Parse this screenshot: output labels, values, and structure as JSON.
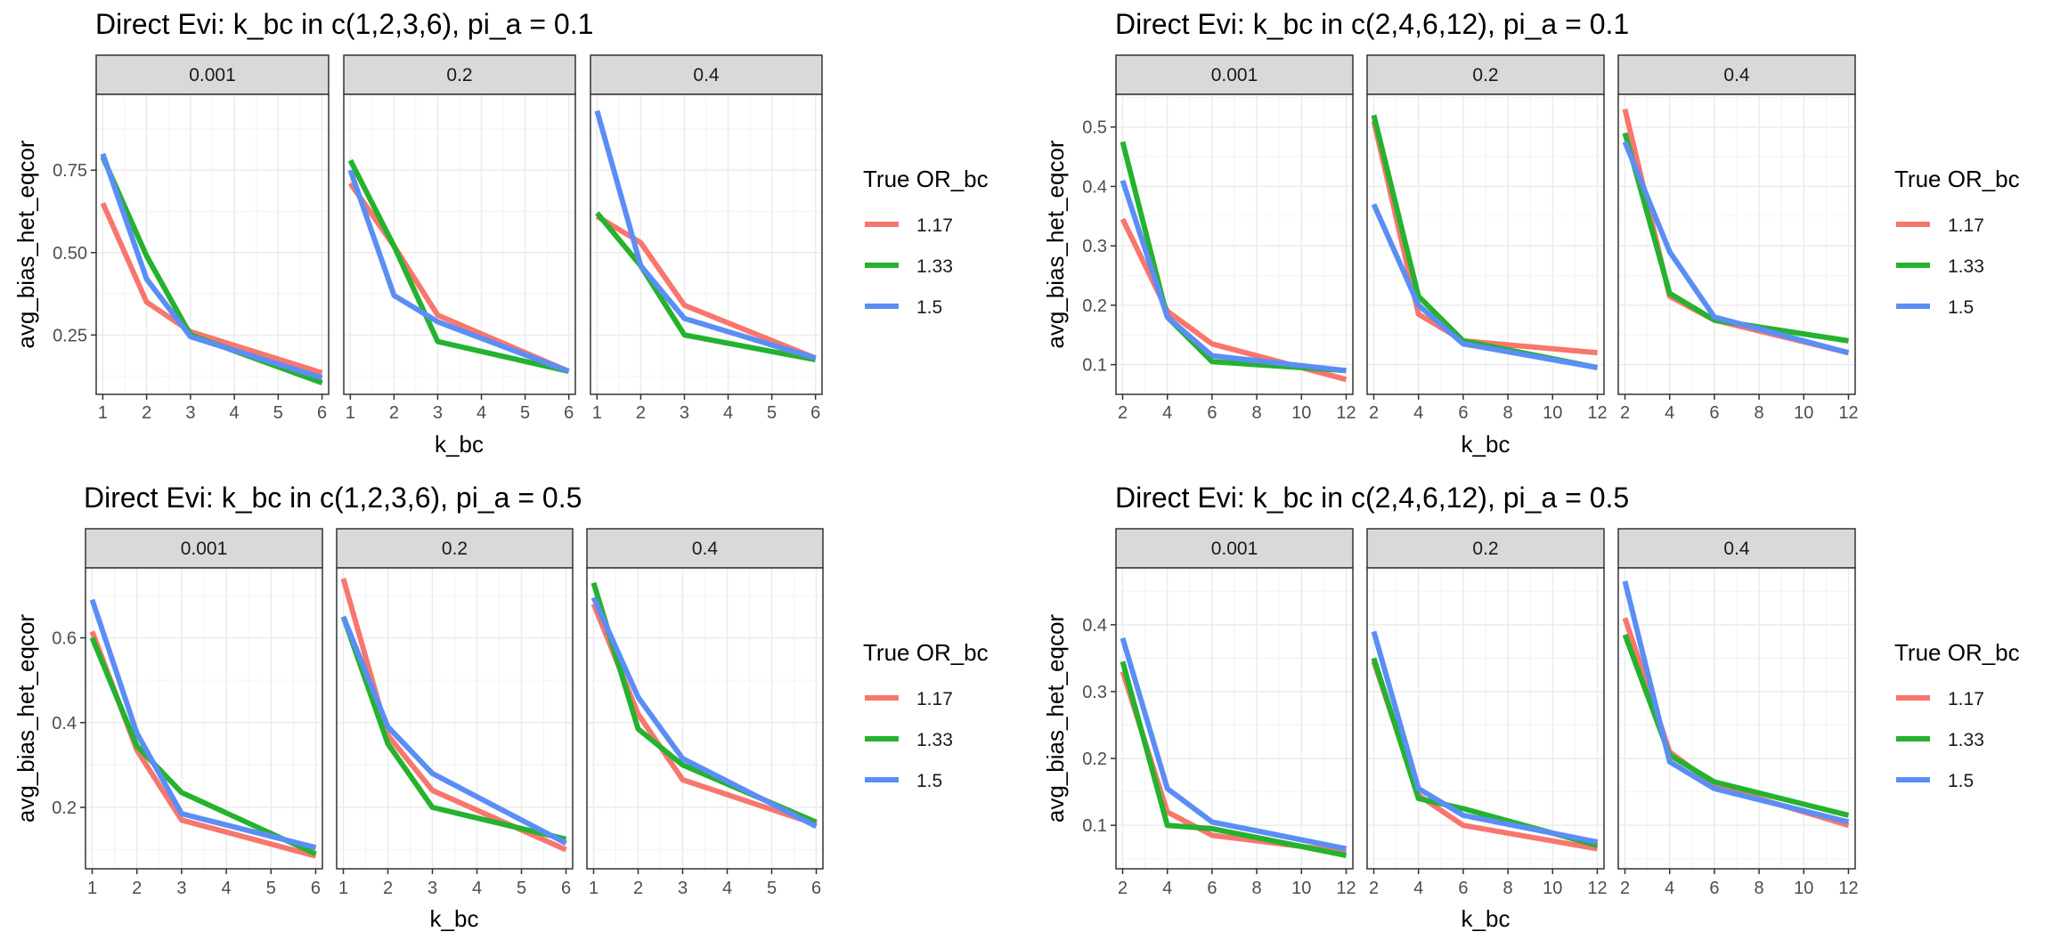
{
  "legend_title": "True OR_bc",
  "colors": {
    "1.17": "#F8766D",
    "1.33": "#25B22E",
    "1.5": "#5B8EF5",
    "strip_bg": "#D9D9D9",
    "grid": "#EBEBEB"
  },
  "chart_data": [
    {
      "type": "line",
      "title": "Direct Evi: k_bc in c(1,2,3,6), pi_a = 0.1",
      "xlabel": "k_bc",
      "ylabel": "avg_bias_het_eqcor",
      "x_ticks": [
        "1",
        "2",
        "3",
        "4",
        "5",
        "6"
      ],
      "xlim": [
        0.85,
        6.15
      ],
      "y_ticks": [
        "0.25",
        "0.50",
        "0.75"
      ],
      "ylim": [
        0.07,
        0.98
      ],
      "grid": true,
      "legend_position": "right",
      "panels": [
        {
          "label": "0.001",
          "series": [
            {
              "name": "1.17",
              "x": [
                1,
                2,
                3,
                6
              ],
              "y": [
                0.65,
                0.35,
                0.26,
                0.135
              ]
            },
            {
              "name": "1.33",
              "x": [
                1,
                2,
                3,
                6
              ],
              "y": [
                0.79,
                0.49,
                0.25,
                0.105
              ]
            },
            {
              "name": "1.5",
              "x": [
                1,
                2,
                3,
                6
              ],
              "y": [
                0.8,
                0.42,
                0.245,
                0.12
              ]
            }
          ]
        },
        {
          "label": "0.2",
          "series": [
            {
              "name": "1.17",
              "x": [
                1,
                2,
                3,
                6
              ],
              "y": [
                0.71,
                0.52,
                0.31,
                0.14
              ]
            },
            {
              "name": "1.33",
              "x": [
                1,
                2,
                3,
                6
              ],
              "y": [
                0.78,
                0.52,
                0.23,
                0.14
              ]
            },
            {
              "name": "1.5",
              "x": [
                1,
                2,
                3,
                6
              ],
              "y": [
                0.75,
                0.37,
                0.29,
                0.14
              ]
            }
          ]
        },
        {
          "label": "0.4",
          "series": [
            {
              "name": "1.17",
              "x": [
                1,
                2,
                3,
                6
              ],
              "y": [
                0.61,
                0.53,
                0.34,
                0.18
              ]
            },
            {
              "name": "1.33",
              "x": [
                1,
                2,
                3,
                6
              ],
              "y": [
                0.62,
                0.46,
                0.25,
                0.175
              ]
            },
            {
              "name": "1.5",
              "x": [
                1,
                2,
                3,
                6
              ],
              "y": [
                0.93,
                0.46,
                0.3,
                0.18
              ]
            }
          ]
        }
      ]
    },
    {
      "type": "line",
      "title": "Direct Evi: k_bc in c(2,4,6,12), pi_a = 0.1",
      "xlabel": "k_bc",
      "ylabel": "avg_bias_het_eqcor",
      "x_ticks": [
        "2",
        "4",
        "6",
        "8",
        "10",
        "12"
      ],
      "xlim": [
        1.7,
        12.3
      ],
      "y_ticks": [
        "0.1",
        "0.2",
        "0.3",
        "0.4",
        "0.5"
      ],
      "ylim": [
        0.05,
        0.555
      ],
      "grid": true,
      "legend_position": "right",
      "panels": [
        {
          "label": "0.001",
          "series": [
            {
              "name": "1.17",
              "x": [
                2,
                4,
                6,
                12
              ],
              "y": [
                0.345,
                0.19,
                0.135,
                0.075
              ]
            },
            {
              "name": "1.33",
              "x": [
                2,
                4,
                6,
                12
              ],
              "y": [
                0.475,
                0.18,
                0.105,
                0.09
              ]
            },
            {
              "name": "1.5",
              "x": [
                2,
                4,
                6,
                12
              ],
              "y": [
                0.41,
                0.18,
                0.115,
                0.09
              ]
            }
          ]
        },
        {
          "label": "0.2",
          "series": [
            {
              "name": "1.17",
              "x": [
                2,
                4,
                6,
                12
              ],
              "y": [
                0.51,
                0.185,
                0.14,
                0.12
              ]
            },
            {
              "name": "1.33",
              "x": [
                2,
                4,
                6,
                12
              ],
              "y": [
                0.52,
                0.215,
                0.14,
                0.095
              ]
            },
            {
              "name": "1.5",
              "x": [
                2,
                4,
                6,
                12
              ],
              "y": [
                0.37,
                0.2,
                0.135,
                0.095
              ]
            }
          ]
        },
        {
          "label": "0.4",
          "series": [
            {
              "name": "1.17",
              "x": [
                2,
                4,
                6,
                12
              ],
              "y": [
                0.53,
                0.215,
                0.175,
                0.12
              ]
            },
            {
              "name": "1.33",
              "x": [
                2,
                4,
                6,
                12
              ],
              "y": [
                0.49,
                0.22,
                0.175,
                0.14
              ]
            },
            {
              "name": "1.5",
              "x": [
                2,
                4,
                6,
                12
              ],
              "y": [
                0.475,
                0.29,
                0.18,
                0.12
              ]
            }
          ]
        }
      ]
    },
    {
      "type": "line",
      "title": "Direct Evi: k_bc in c(1,2,3,6), pi_a = 0.5",
      "xlabel": "k_bc",
      "ylabel": "avg_bias_het_eqcor",
      "x_ticks": [
        "1",
        "2",
        "3",
        "4",
        "5",
        "6"
      ],
      "xlim": [
        0.85,
        6.15
      ],
      "y_ticks": [
        "0.2",
        "0.4",
        "0.6"
      ],
      "ylim": [
        0.055,
        0.765
      ],
      "grid": true,
      "legend_position": "right",
      "panels": [
        {
          "label": "0.001",
          "series": [
            {
              "name": "1.17",
              "x": [
                1,
                2,
                3,
                6
              ],
              "y": [
                0.615,
                0.335,
                0.17,
                0.085
              ]
            },
            {
              "name": "1.33",
              "x": [
                1,
                2,
                3,
                6
              ],
              "y": [
                0.6,
                0.345,
                0.235,
                0.09
              ]
            },
            {
              "name": "1.5",
              "x": [
                1,
                2,
                3,
                6
              ],
              "y": [
                0.69,
                0.375,
                0.185,
                0.105
              ]
            }
          ]
        },
        {
          "label": "0.2",
          "series": [
            {
              "name": "1.17",
              "x": [
                1,
                2,
                3,
                6
              ],
              "y": [
                0.74,
                0.37,
                0.24,
                0.1
              ]
            },
            {
              "name": "1.33",
              "x": [
                1,
                2,
                3,
                6
              ],
              "y": [
                0.65,
                0.35,
                0.2,
                0.125
              ]
            },
            {
              "name": "1.5",
              "x": [
                1,
                2,
                3,
                6
              ],
              "y": [
                0.65,
                0.39,
                0.28,
                0.115
              ]
            }
          ]
        },
        {
          "label": "0.4",
          "series": [
            {
              "name": "1.17",
              "x": [
                1,
                2,
                3,
                6
              ],
              "y": [
                0.68,
                0.42,
                0.265,
                0.16
              ]
            },
            {
              "name": "1.33",
              "x": [
                1,
                2,
                3,
                6
              ],
              "y": [
                0.73,
                0.385,
                0.3,
                0.165
              ]
            },
            {
              "name": "1.5",
              "x": [
                1,
                2,
                3,
                6
              ],
              "y": [
                0.695,
                0.46,
                0.315,
                0.155
              ]
            }
          ]
        }
      ]
    },
    {
      "type": "line",
      "title": "Direct Evi:  k_bc in c(2,4,6,12), pi_a = 0.5",
      "xlabel": "k_bc",
      "ylabel": "avg_bias_het_eqcor",
      "x_ticks": [
        "2",
        "4",
        "6",
        "8",
        "10",
        "12"
      ],
      "xlim": [
        1.7,
        12.3
      ],
      "y_ticks": [
        "0.1",
        "0.2",
        "0.3",
        "0.4"
      ],
      "ylim": [
        0.035,
        0.485
      ],
      "grid": true,
      "legend_position": "right",
      "panels": [
        {
          "label": "0.001",
          "series": [
            {
              "name": "1.17",
              "x": [
                2,
                4,
                6,
                12
              ],
              "y": [
                0.33,
                0.12,
                0.085,
                0.06
              ]
            },
            {
              "name": "1.33",
              "x": [
                2,
                4,
                6,
                12
              ],
              "y": [
                0.345,
                0.1,
                0.095,
                0.055
              ]
            },
            {
              "name": "1.5",
              "x": [
                2,
                4,
                6,
                12
              ],
              "y": [
                0.38,
                0.155,
                0.105,
                0.065
              ]
            }
          ]
        },
        {
          "label": "0.2",
          "series": [
            {
              "name": "1.17",
              "x": [
                2,
                4,
                6,
                12
              ],
              "y": [
                0.345,
                0.145,
                0.1,
                0.065
              ]
            },
            {
              "name": "1.33",
              "x": [
                2,
                4,
                6,
                12
              ],
              "y": [
                0.35,
                0.14,
                0.125,
                0.07
              ]
            },
            {
              "name": "1.5",
              "x": [
                2,
                4,
                6,
                12
              ],
              "y": [
                0.39,
                0.155,
                0.115,
                0.075
              ]
            }
          ]
        },
        {
          "label": "0.4",
          "series": [
            {
              "name": "1.17",
              "x": [
                2,
                4,
                6,
                12
              ],
              "y": [
                0.41,
                0.21,
                0.16,
                0.1
              ]
            },
            {
              "name": "1.33",
              "x": [
                2,
                4,
                6,
                12
              ],
              "y": [
                0.385,
                0.205,
                0.165,
                0.115
              ]
            },
            {
              "name": "1.5",
              "x": [
                2,
                4,
                6,
                12
              ],
              "y": [
                0.465,
                0.195,
                0.155,
                0.105
              ]
            }
          ]
        }
      ]
    }
  ]
}
